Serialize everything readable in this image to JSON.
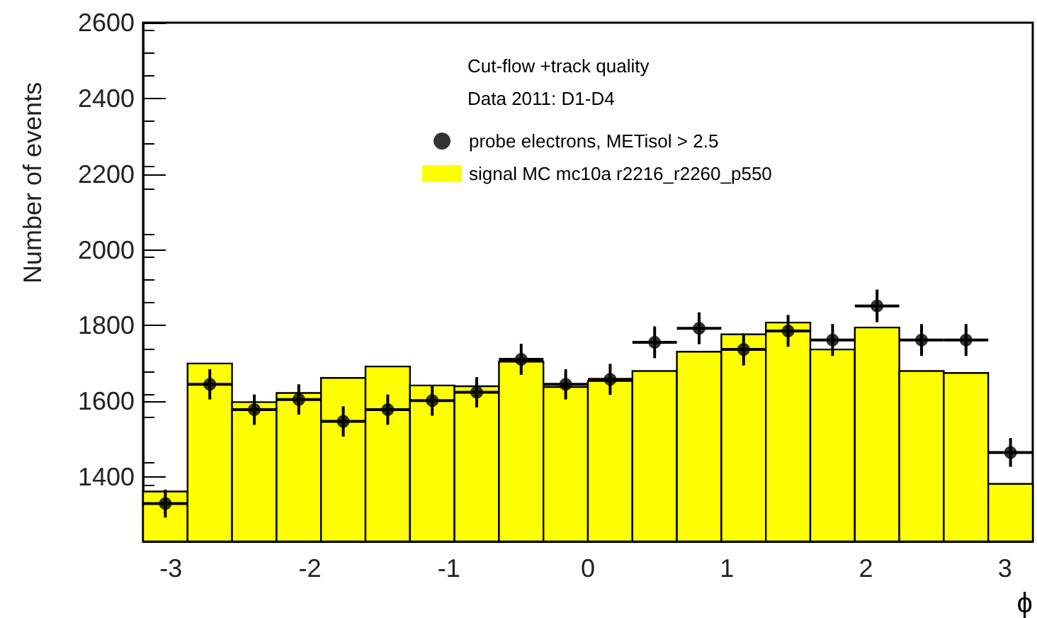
{
  "chart_data": {
    "type": "histogram",
    "xlabel": "ϕ",
    "ylabel": "Number of events",
    "legend_title": "Cut-flow +track quality",
    "annotations": [
      "Data 2011: D1-D4"
    ],
    "bins": [
      -3.2,
      -2.88,
      -2.56,
      -2.24,
      -1.92,
      -1.6,
      -1.28,
      -0.96,
      -0.64,
      -0.32,
      0,
      0.32,
      0.64,
      0.96,
      1.28,
      1.6,
      1.92,
      2.24,
      2.56,
      2.88,
      3.2
    ],
    "series": [
      {
        "name": "probe electrons, METisol > 2.5",
        "type": "scatter",
        "color": "#000000",
        "x": [
          -3.04,
          -2.72,
          -2.4,
          -2.08,
          -1.76,
          -1.44,
          -1.12,
          -0.8,
          -0.48,
          -0.16,
          0.16,
          0.48,
          0.8,
          1.12,
          1.44,
          1.76,
          2.08,
          2.4,
          2.72,
          3.04
        ],
        "values": [
          1330,
          1645,
          1578,
          1605,
          1547,
          1578,
          1602,
          1624,
          1711,
          1645,
          1658,
          1756,
          1793,
          1737,
          1786,
          1762,
          1852,
          1762,
          1762,
          1465
        ],
        "errors": [
          37,
          40,
          40,
          40,
          40,
          40,
          40,
          40,
          41,
          40,
          41,
          42,
          42,
          42,
          42,
          42,
          43,
          42,
          42,
          38
        ],
        "xerrors": [
          0.16,
          0.16,
          0.16,
          0.16,
          0.16,
          0.16,
          0.16,
          0.16,
          0.16,
          0.16,
          0.16,
          0.16,
          0.16,
          0.16,
          0.16,
          0.16,
          0.16,
          0.16,
          0.16,
          0.16
        ]
      },
      {
        "name": "signal MC mc10a r2216_r2260_p550",
        "type": "histogram",
        "color": "#ffff00",
        "values": [
          1362,
          1700,
          1598,
          1622,
          1662,
          1692,
          1642,
          1640,
          1705,
          1638,
          1654,
          1680,
          1731,
          1777,
          1808,
          1737,
          1795,
          1680,
          1675,
          1382
        ]
      }
    ],
    "xlim": [
      -3.2,
      3.2
    ],
    "ylim": [
      1230,
      2600
    ],
    "xticks": [
      -3,
      -2,
      -1,
      0,
      1,
      2,
      3
    ],
    "yticks": [
      1400,
      1600,
      1800,
      2000,
      2200,
      2400,
      2600
    ],
    "grid": false,
    "legend": "top right",
    "marker": "circle"
  }
}
